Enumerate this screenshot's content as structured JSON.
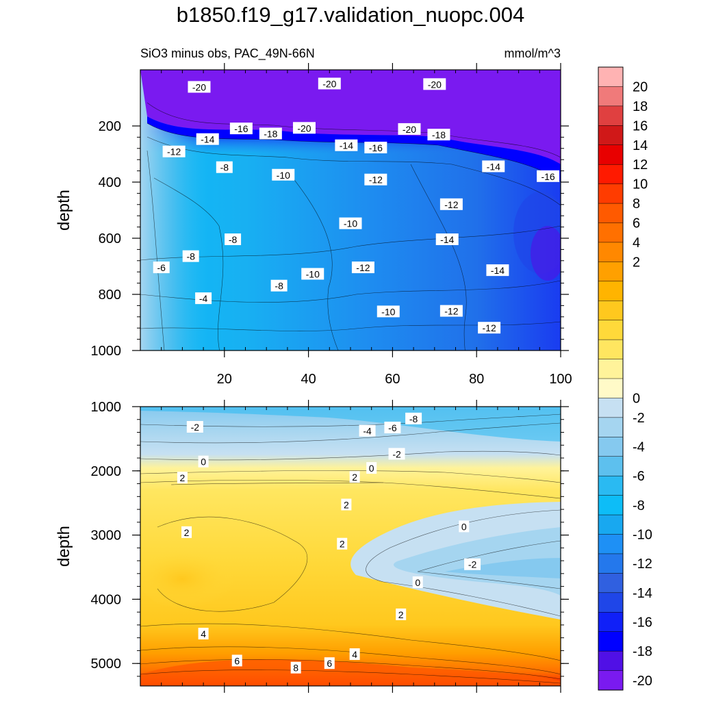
{
  "title": "b1850.f19_g17.validation_nuopc.004",
  "subtitle_left": "SiO3 minus obs, PAC_49N-66N",
  "subtitle_right": "mmol/m^3",
  "chart_data": [
    {
      "type": "contour",
      "panel": "upper",
      "ylabel": "depth",
      "xlim": [
        0,
        100
      ],
      "ylim": [
        1000,
        0
      ],
      "xticks": [
        20,
        40,
        60,
        80,
        100
      ],
      "yticks": [
        200,
        400,
        600,
        800,
        1000
      ],
      "contour_labels": [
        {
          "x": 14,
          "y": 62,
          "text": "-20"
        },
        {
          "x": 45,
          "y": 50,
          "text": "-20"
        },
        {
          "x": 70,
          "y": 52,
          "text": "-20"
        },
        {
          "x": 24,
          "y": 210,
          "text": "-16"
        },
        {
          "x": 16,
          "y": 248,
          "text": "-14"
        },
        {
          "x": 31,
          "y": 228,
          "text": "-18"
        },
        {
          "x": 39,
          "y": 208,
          "text": "-20"
        },
        {
          "x": 49,
          "y": 270,
          "text": "-14"
        },
        {
          "x": 56,
          "y": 278,
          "text": "-16"
        },
        {
          "x": 64,
          "y": 212,
          "text": "-20"
        },
        {
          "x": 71,
          "y": 232,
          "text": "-18"
        },
        {
          "x": 8,
          "y": 292,
          "text": "-12"
        },
        {
          "x": 20,
          "y": 348,
          "text": "-8"
        },
        {
          "x": 34,
          "y": 375,
          "text": "-10"
        },
        {
          "x": 56,
          "y": 392,
          "text": "-12"
        },
        {
          "x": 84,
          "y": 345,
          "text": "-14"
        },
        {
          "x": 97,
          "y": 380,
          "text": "-16"
        },
        {
          "x": 74,
          "y": 480,
          "text": "-12"
        },
        {
          "x": 50,
          "y": 548,
          "text": "-10"
        },
        {
          "x": 22,
          "y": 605,
          "text": "-8"
        },
        {
          "x": 73,
          "y": 605,
          "text": "-14"
        },
        {
          "x": 12,
          "y": 665,
          "text": "-8"
        },
        {
          "x": 5,
          "y": 705,
          "text": "-6"
        },
        {
          "x": 41,
          "y": 728,
          "text": "-10"
        },
        {
          "x": 53,
          "y": 705,
          "text": "-12"
        },
        {
          "x": 85,
          "y": 715,
          "text": "-14"
        },
        {
          "x": 33,
          "y": 770,
          "text": "-8"
        },
        {
          "x": 15,
          "y": 815,
          "text": "-4"
        },
        {
          "x": 59,
          "y": 862,
          "text": "-10"
        },
        {
          "x": 74,
          "y": 860,
          "text": "-12"
        },
        {
          "x": 83,
          "y": 920,
          "text": "-12"
        }
      ]
    },
    {
      "type": "contour",
      "panel": "lower",
      "ylabel": "depth",
      "xlim": [
        0,
        100
      ],
      "ylim": [
        5350,
        1000
      ],
      "xticks": [
        20,
        40,
        60,
        80,
        100
      ],
      "yticks": [
        1000,
        2000,
        3000,
        4000,
        5000
      ],
      "contour_labels": [
        {
          "x": 13,
          "y": 1320,
          "text": "-2"
        },
        {
          "x": 54,
          "y": 1380,
          "text": "-4"
        },
        {
          "x": 60,
          "y": 1330,
          "text": "-6"
        },
        {
          "x": 65,
          "y": 1190,
          "text": "-8"
        },
        {
          "x": 61,
          "y": 1740,
          "text": "-2"
        },
        {
          "x": 15,
          "y": 1860,
          "text": "0"
        },
        {
          "x": 55,
          "y": 1960,
          "text": "0"
        },
        {
          "x": 10,
          "y": 2110,
          "text": "2"
        },
        {
          "x": 51,
          "y": 2100,
          "text": "2"
        },
        {
          "x": 49,
          "y": 2530,
          "text": "2"
        },
        {
          "x": 11,
          "y": 2960,
          "text": "2"
        },
        {
          "x": 48,
          "y": 3140,
          "text": "2"
        },
        {
          "x": 77,
          "y": 2870,
          "text": "0"
        },
        {
          "x": 79,
          "y": 3460,
          "text": "-2"
        },
        {
          "x": 66,
          "y": 3740,
          "text": "0"
        },
        {
          "x": 62,
          "y": 4240,
          "text": "2"
        },
        {
          "x": 15,
          "y": 4540,
          "text": "4"
        },
        {
          "x": 51,
          "y": 4860,
          "text": "4"
        },
        {
          "x": 23,
          "y": 4960,
          "text": "6"
        },
        {
          "x": 45,
          "y": 5000,
          "text": "6"
        },
        {
          "x": 37,
          "y": 5070,
          "text": "8"
        }
      ]
    }
  ],
  "colorbar": {
    "labels": [
      "20",
      "18",
      "16",
      "14",
      "12",
      "10",
      "8",
      "6",
      "4",
      "2",
      "0",
      "-2",
      "-4",
      "-6",
      "-8",
      "-10",
      "-12",
      "-14",
      "-16",
      "-18",
      "-20"
    ],
    "colors": [
      "#FFB3B3",
      "#F07A7A",
      "#E04040",
      "#D01818",
      "#E80000",
      "#FF1A00",
      "#FF3C00",
      "#FF5A00",
      "#FF7000",
      "#FF8800",
      "#FFA000",
      "#FFB400",
      "#FFC81E",
      "#FFD93A",
      "#FFE660",
      "#FFF39A",
      "#FFFAC8",
      "#C6E0F2",
      "#A5D5F0",
      "#85C9EF",
      "#5DC0EE",
      "#2ABAF2",
      "#0DBDF7",
      "#18A8F0",
      "#1E90F5",
      "#2478EC",
      "#3060E0",
      "#1F46E8",
      "#1020F8",
      "#0000FF",
      "#5010E6",
      "#7A1AF0"
    ]
  }
}
